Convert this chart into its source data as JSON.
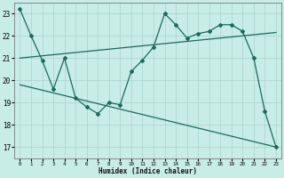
{
  "xlabel": "Humidex (Indice chaleur)",
  "bg_color": "#c8ece6",
  "grid_color": "#a8d4cc",
  "line_color": "#1a6b5a",
  "xlim": [
    -0.5,
    23.5
  ],
  "ylim": [
    16.5,
    23.5
  ],
  "yticks": [
    17,
    18,
    19,
    20,
    21,
    22,
    23
  ],
  "xticks": [
    0,
    1,
    2,
    3,
    4,
    5,
    6,
    7,
    8,
    9,
    10,
    11,
    12,
    13,
    14,
    15,
    16,
    17,
    18,
    19,
    20,
    21,
    22,
    23
  ],
  "series1_x": [
    0,
    1,
    2,
    3,
    4,
    5,
    6,
    7,
    8,
    9,
    10,
    11,
    12,
    13,
    14,
    15,
    16,
    17,
    18,
    19,
    20,
    21,
    22,
    23
  ],
  "series1_y": [
    23.2,
    22.0,
    20.9,
    19.6,
    21.0,
    19.2,
    18.8,
    18.5,
    19.0,
    18.9,
    20.4,
    20.9,
    21.5,
    23.0,
    22.5,
    21.9,
    22.1,
    22.2,
    22.5,
    22.5,
    22.2,
    21.0,
    18.6,
    17.0
  ],
  "series2_x": [
    0,
    1,
    2,
    3,
    4,
    5,
    6,
    7,
    8,
    9,
    10,
    11,
    12,
    13,
    14,
    15,
    16,
    17,
    18,
    19,
    20,
    21,
    22,
    23
  ],
  "series2_y": [
    21.0,
    21.05,
    21.1,
    21.15,
    21.2,
    21.25,
    21.3,
    21.35,
    21.4,
    21.45,
    21.5,
    21.55,
    21.6,
    21.65,
    21.7,
    21.75,
    21.8,
    21.85,
    21.9,
    21.95,
    22.0,
    22.05,
    22.1,
    22.15
  ],
  "series3_x": [
    0,
    23
  ],
  "series3_y": [
    19.8,
    17.0
  ]
}
